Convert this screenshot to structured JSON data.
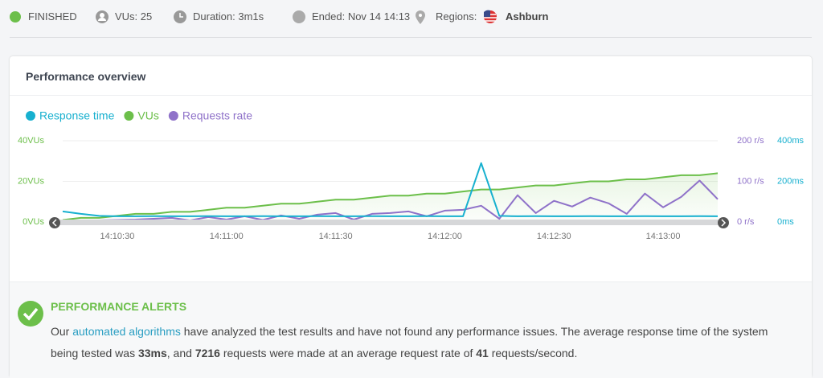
{
  "header": {
    "status": "FINISHED",
    "vus": "VUs: 25",
    "duration": "Duration: 3m1s",
    "ended": "Ended: Nov 14 14:13",
    "regions_label": "Regions:",
    "region": "Ashburn"
  },
  "panel": {
    "title": "Performance overview"
  },
  "chart_data": {
    "type": "line",
    "x": [
      "14:10:15",
      "14:10:20",
      "14:10:25",
      "14:10:30",
      "14:10:35",
      "14:10:40",
      "14:10:45",
      "14:10:50",
      "14:10:55",
      "14:11:00",
      "14:11:05",
      "14:11:10",
      "14:11:15",
      "14:11:20",
      "14:11:25",
      "14:11:30",
      "14:11:35",
      "14:11:40",
      "14:11:45",
      "14:11:50",
      "14:11:55",
      "14:12:00",
      "14:12:05",
      "14:12:10",
      "14:12:15",
      "14:12:20",
      "14:12:25",
      "14:12:30",
      "14:12:35",
      "14:12:40",
      "14:12:45",
      "14:12:50",
      "14:12:55",
      "14:13:00",
      "14:13:05",
      "14:13:10",
      "14:13:15"
    ],
    "xlim": [
      "14:10:15",
      "14:13:15"
    ],
    "xticks": [
      "14:10:30",
      "14:11:00",
      "14:11:30",
      "14:12:00",
      "14:12:30",
      "14:13:00"
    ],
    "ylim": [
      0,
      40
    ],
    "yticks": [
      {
        "value": 0,
        "label": "0VUs"
      },
      {
        "value": 20,
        "label": "20VUs"
      },
      {
        "value": 40,
        "label": "40VUs"
      }
    ],
    "y2lim": [
      0,
      200
    ],
    "y2ticks": [
      {
        "value": 0,
        "label": "0 r/s"
      },
      {
        "value": 100,
        "label": "100 r/s"
      },
      {
        "value": 200,
        "label": "200 r/s"
      }
    ],
    "y3lim": [
      0,
      400
    ],
    "y3ticks": [
      {
        "value": 0,
        "label": "0ms"
      },
      {
        "value": 200,
        "label": "200ms"
      },
      {
        "value": 400,
        "label": "400ms"
      }
    ],
    "series": [
      {
        "name": "Response time",
        "color": "#17b0cf",
        "axis": "y3",
        "values": [
          52,
          40,
          30,
          28,
          28,
          29,
          28,
          28,
          29,
          28,
          28,
          29,
          28,
          28,
          29,
          28,
          28,
          29,
          28,
          28,
          29,
          28,
          28,
          290,
          30,
          28,
          29,
          28,
          28,
          29,
          28,
          28,
          29,
          28,
          28,
          29,
          28
        ]
      },
      {
        "name": "VUs",
        "color": "#6cbf4a",
        "values": [
          1,
          2,
          2,
          3,
          4,
          4,
          5,
          5,
          6,
          7,
          7,
          8,
          9,
          9,
          10,
          11,
          11,
          12,
          13,
          13,
          14,
          14,
          15,
          16,
          16,
          17,
          18,
          18,
          19,
          20,
          20,
          21,
          21,
          22,
          23,
          23,
          24
        ]
      },
      {
        "name": "Requests rate",
        "color": "#8f72c9",
        "axis": "y2",
        "values": [
          3,
          3,
          4,
          5,
          6,
          8,
          10,
          4,
          12,
          6,
          14,
          5,
          16,
          8,
          18,
          22,
          6,
          20,
          22,
          26,
          14,
          28,
          30,
          40,
          8,
          66,
          22,
          52,
          38,
          60,
          46,
          20,
          70,
          36,
          62,
          102,
          56
        ]
      }
    ]
  },
  "alerts": {
    "title": "PERFORMANCE ALERTS",
    "t1": "Our ",
    "link": "automated algorithms",
    "t2": " have analyzed the test results and have not found any performance issues. The average response time of the system being tested was ",
    "b1": "33ms",
    "t3": ", and ",
    "b2": "7216",
    "t4": " requests were made at an average request rate of ",
    "b3": "41",
    "t5": " requests/second."
  }
}
